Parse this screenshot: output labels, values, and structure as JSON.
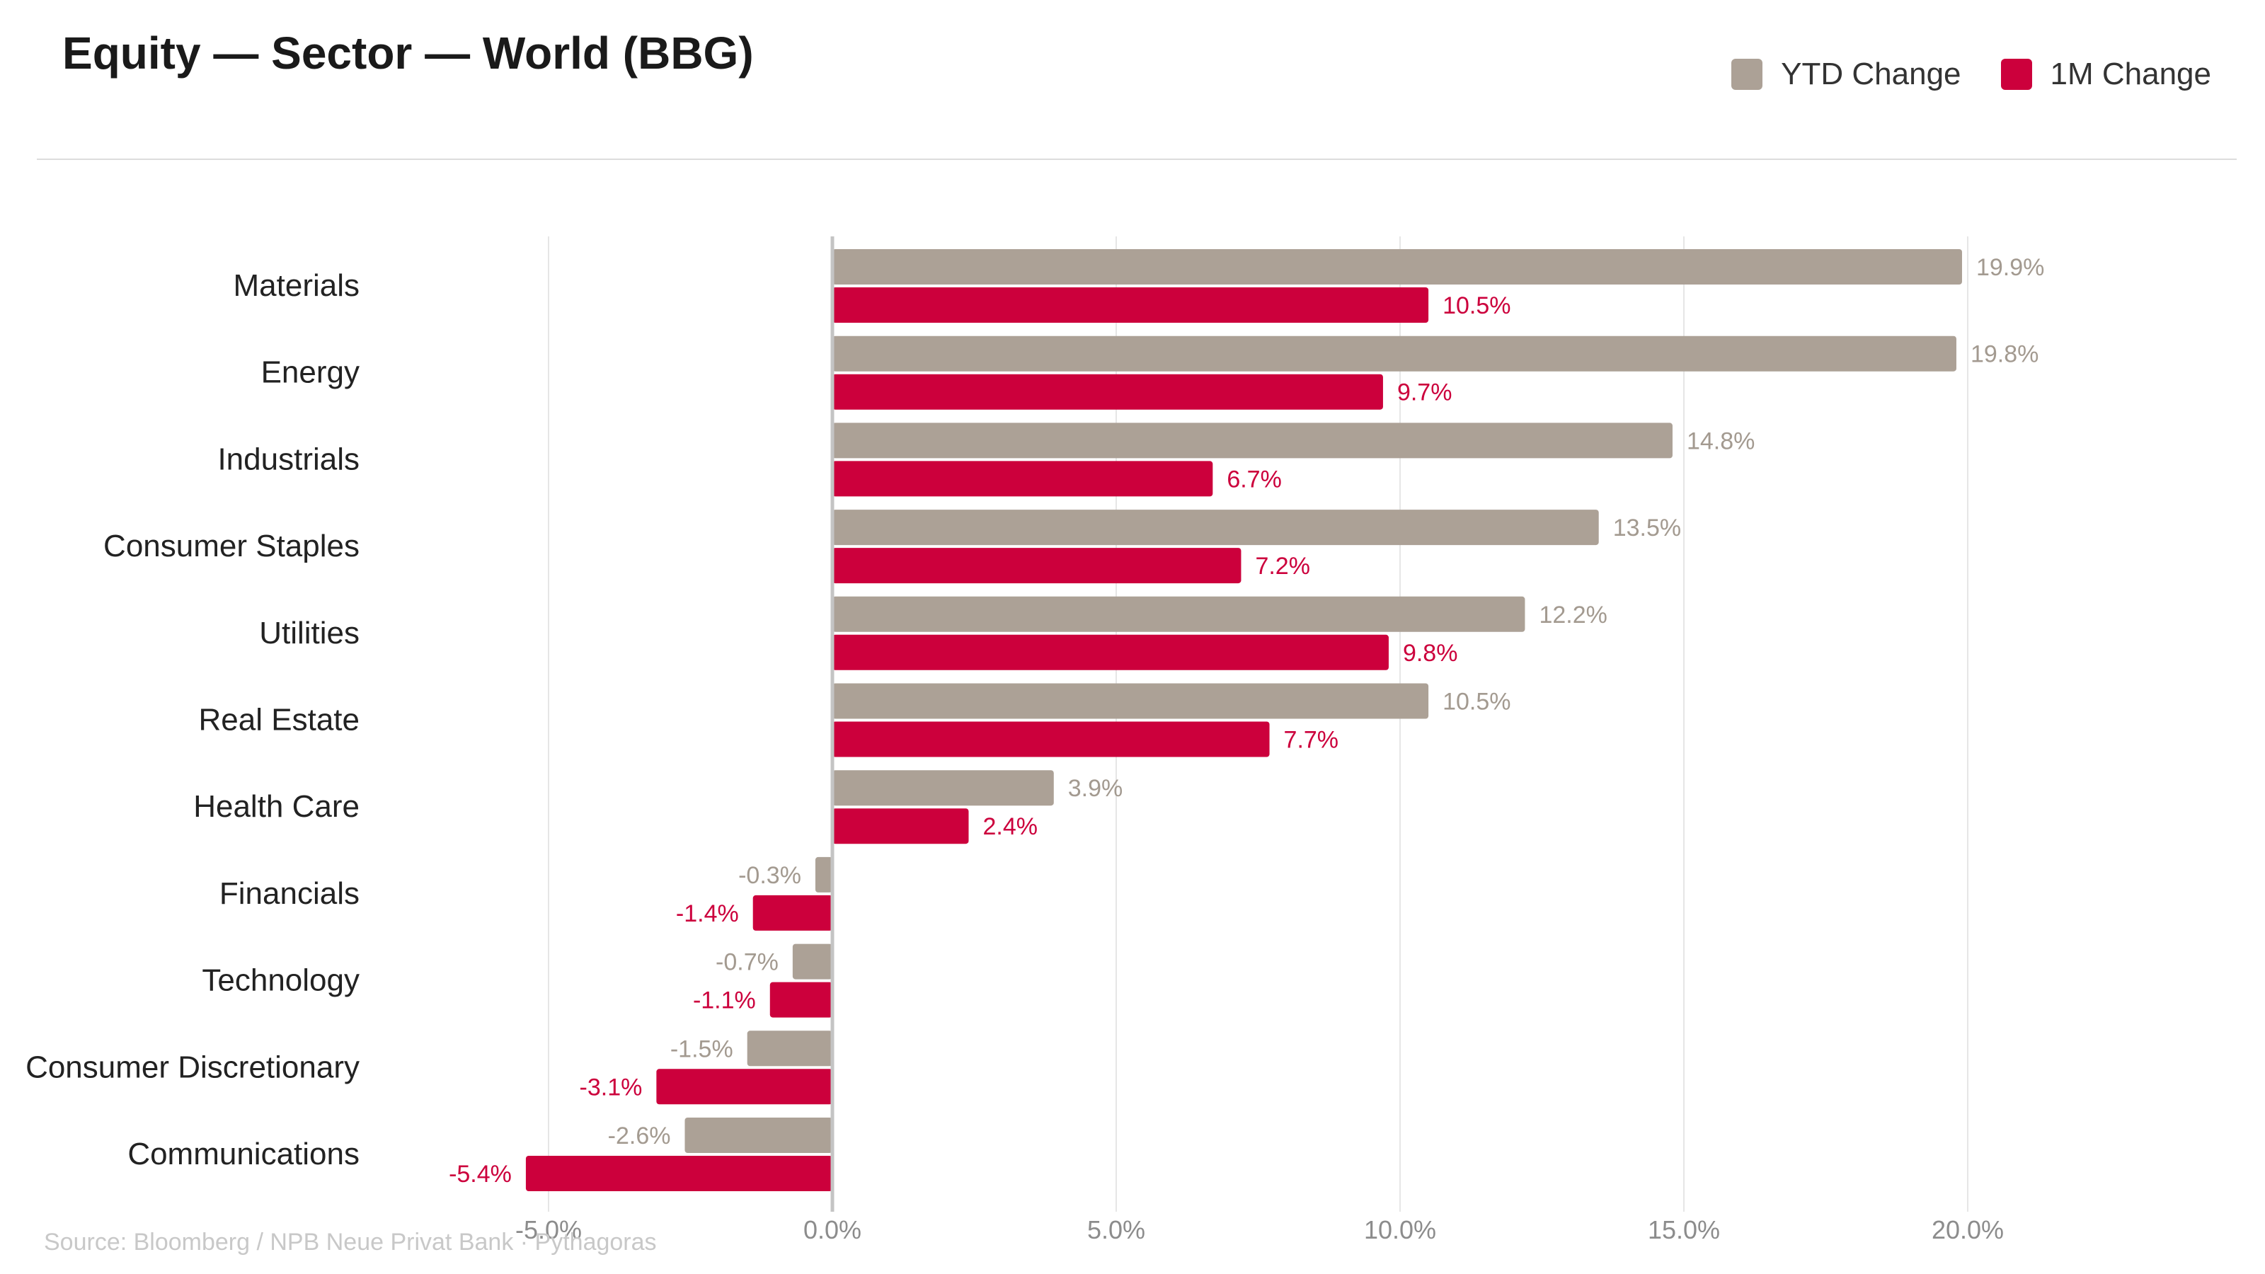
{
  "header": {
    "title": "Equity — Sector — World (BBG)"
  },
  "legend": {
    "items": [
      {
        "label": "YTD Change",
        "color": "#aca196"
      },
      {
        "label": "1M Change",
        "color": "#cc003c"
      }
    ]
  },
  "footer": {
    "source": "Source: Bloomberg / NPB Neue Privat Bank · Pythagoras"
  },
  "chart_data": {
    "type": "bar",
    "orientation": "horizontal",
    "title": "Equity — Sector — World (BBG)",
    "xlabel": "",
    "ylabel": "",
    "xlim": [
      -5.5,
      20.0
    ],
    "x_ticks": [
      -5.0,
      0.0,
      5.0,
      10.0,
      15.0,
      20.0
    ],
    "x_tick_labels": [
      "-5.0%",
      "0.0%",
      "5.0%",
      "10.0%",
      "15.0%",
      "20.0%"
    ],
    "grid": true,
    "legend_position": "top-right",
    "categories": [
      "Materials",
      "Energy",
      "Industrials",
      "Consumer Staples",
      "Utilities",
      "Real Estate",
      "Health Care",
      "Financials",
      "Technology",
      "Consumer Discretionary",
      "Communications"
    ],
    "series": [
      {
        "name": "YTD Change",
        "color": "#aca196",
        "label_color": "#a39a90",
        "values": [
          19.9,
          19.8,
          14.8,
          13.5,
          12.2,
          10.5,
          3.9,
          -0.3,
          -0.7,
          -1.5,
          -2.6
        ],
        "labels": [
          "19.9%",
          "19.8%",
          "14.8%",
          "13.5%",
          "12.2%",
          "10.5%",
          "3.9%",
          "-0.3%",
          "-0.7%",
          "-1.5%",
          "-2.6%"
        ]
      },
      {
        "name": "1M Change",
        "color": "#cc003c",
        "label_color": "#cc003c",
        "values": [
          10.5,
          9.7,
          6.7,
          7.2,
          9.8,
          7.7,
          2.4,
          -1.4,
          -1.1,
          -3.1,
          -5.4
        ],
        "labels": [
          "10.5%",
          "9.7%",
          "6.7%",
          "7.2%",
          "9.8%",
          "7.7%",
          "2.4%",
          "-1.4%",
          "-1.1%",
          "-3.1%",
          "-5.4%"
        ]
      }
    ]
  }
}
